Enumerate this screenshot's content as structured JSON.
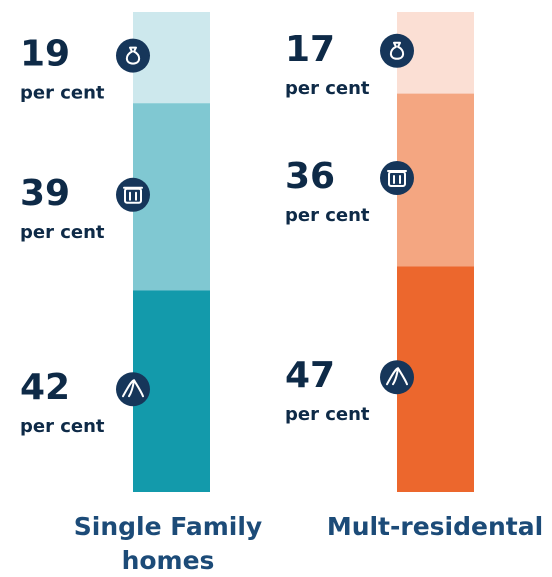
{
  "chart_data": {
    "type": "stacked-bar",
    "categories": [
      "Single Family homes",
      "Mult-residental"
    ],
    "unit_label": "per cent",
    "series": [
      {
        "colors": [
          "#cde8ed",
          "#fbdfd4"
        ],
        "values": [
          19,
          17
        ]
      },
      {
        "colors": [
          "#80c8d2",
          "#f4a681"
        ],
        "values": [
          39,
          36
        ]
      },
      {
        "colors": [
          "#139aab",
          "#ec672d"
        ],
        "values": [
          42,
          47
        ]
      }
    ],
    "ylim": [
      0,
      100
    ]
  }
}
